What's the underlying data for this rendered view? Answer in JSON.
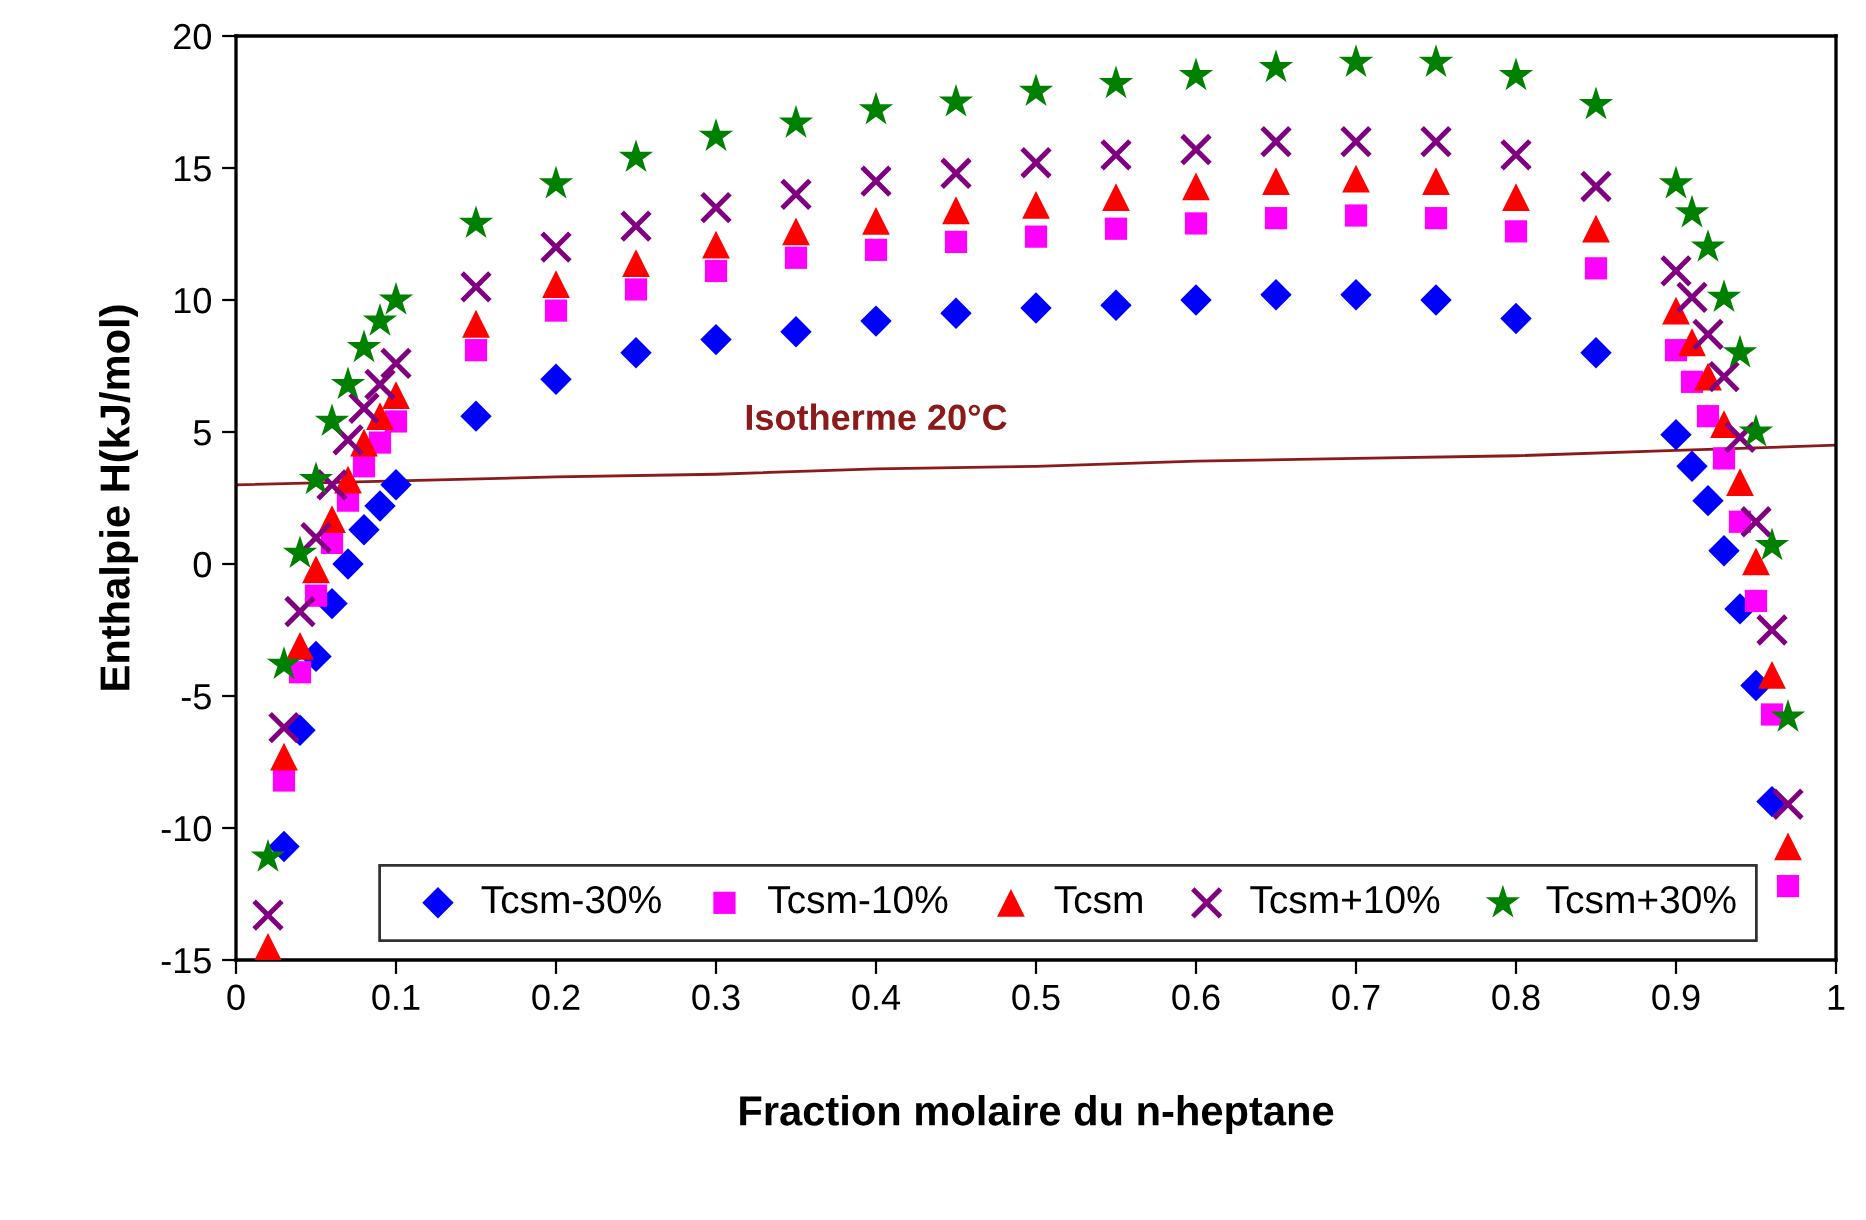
{
  "chart_data": {
    "type": "scatter",
    "xlabel": "Fraction molaire du n-heptane",
    "ylabel": "Enthalpie H(kJ/mol)",
    "xlim": [
      0,
      1
    ],
    "ylim": [
      -15,
      20
    ],
    "xticks": [
      0,
      0.1,
      0.2,
      0.3,
      0.4,
      0.5,
      0.6,
      0.7,
      0.8,
      0.9,
      1
    ],
    "yticks": [
      -15,
      -10,
      -5,
      0,
      5,
      10,
      15,
      20
    ],
    "grid": false,
    "legend": "bottom",
    "series": [
      {
        "name": "Tcsm-30%",
        "color": "#0000ff",
        "marker": "diamond",
        "x": [
          0.03,
          0.04,
          0.05,
          0.06,
          0.07,
          0.08,
          0.09,
          0.1,
          0.15,
          0.2,
          0.25,
          0.3,
          0.35,
          0.4,
          0.45,
          0.5,
          0.55,
          0.6,
          0.65,
          0.7,
          0.75,
          0.8,
          0.85,
          0.9,
          0.91,
          0.92,
          0.93,
          0.94,
          0.95,
          0.96
        ],
        "values": [
          -10.7,
          -6.3,
          -3.5,
          -1.5,
          0,
          1.3,
          2.2,
          3.0,
          5.6,
          7.0,
          8.0,
          8.5,
          8.8,
          9.2,
          9.5,
          9.7,
          9.8,
          10.0,
          10.2,
          10.2,
          10.0,
          9.3,
          8.0,
          4.9,
          3.7,
          2.4,
          0.5,
          -1.7,
          -4.6,
          -9.0
        ]
      },
      {
        "name": "Tcsm-10%",
        "color": "#ff00ff",
        "marker": "square",
        "x": [
          0.03,
          0.04,
          0.05,
          0.06,
          0.07,
          0.08,
          0.09,
          0.1,
          0.15,
          0.2,
          0.25,
          0.3,
          0.35,
          0.4,
          0.45,
          0.5,
          0.55,
          0.6,
          0.65,
          0.7,
          0.75,
          0.8,
          0.85,
          0.9,
          0.91,
          0.92,
          0.93,
          0.94,
          0.95,
          0.96,
          0.97
        ],
        "values": [
          -8.2,
          -4.1,
          -1.2,
          0.8,
          2.4,
          3.7,
          4.6,
          5.4,
          8.1,
          9.6,
          10.4,
          11.1,
          11.6,
          11.9,
          12.2,
          12.4,
          12.7,
          12.9,
          13.1,
          13.2,
          13.1,
          12.6,
          11.2,
          8.1,
          6.9,
          5.6,
          4.0,
          1.6,
          -1.4,
          -5.7,
          -12.2
        ]
      },
      {
        "name": "Tcsm",
        "color": "#ff0000",
        "marker": "triangle",
        "x": [
          0.02,
          0.03,
          0.04,
          0.05,
          0.06,
          0.07,
          0.08,
          0.09,
          0.1,
          0.15,
          0.2,
          0.25,
          0.3,
          0.35,
          0.4,
          0.45,
          0.5,
          0.55,
          0.6,
          0.65,
          0.7,
          0.75,
          0.8,
          0.85,
          0.9,
          0.91,
          0.92,
          0.93,
          0.94,
          0.95,
          0.96,
          0.97
        ],
        "values": [
          -14.5,
          -7.3,
          -3.1,
          -0.2,
          1.7,
          3.2,
          4.6,
          5.6,
          6.4,
          9.1,
          10.6,
          11.4,
          12.1,
          12.6,
          13.0,
          13.4,
          13.6,
          13.9,
          14.3,
          14.5,
          14.6,
          14.5,
          13.9,
          12.7,
          9.6,
          8.4,
          7.1,
          5.3,
          3.1,
          0.1,
          -4.2,
          -10.7
        ]
      },
      {
        "name": "Tcsm+10%",
        "color": "#800080",
        "marker": "cross",
        "x": [
          0.02,
          0.03,
          0.04,
          0.05,
          0.06,
          0.07,
          0.08,
          0.09,
          0.1,
          0.15,
          0.2,
          0.25,
          0.3,
          0.35,
          0.4,
          0.45,
          0.5,
          0.55,
          0.6,
          0.65,
          0.7,
          0.75,
          0.8,
          0.85,
          0.9,
          0.91,
          0.92,
          0.93,
          0.94,
          0.95,
          0.96,
          0.97
        ],
        "values": [
          -13.3,
          -6.2,
          -1.8,
          1.0,
          3.0,
          4.7,
          5.9,
          6.8,
          7.6,
          10.5,
          12.0,
          12.8,
          13.5,
          14.0,
          14.5,
          14.8,
          15.2,
          15.5,
          15.7,
          16.0,
          16.0,
          16.0,
          15.5,
          14.3,
          11.1,
          10.1,
          8.7,
          7.1,
          4.8,
          1.6,
          -2.5,
          -9.1
        ]
      },
      {
        "name": "Tcsm+30%",
        "color": "#008000",
        "marker": "star",
        "x": [
          0.02,
          0.03,
          0.04,
          0.05,
          0.06,
          0.07,
          0.08,
          0.09,
          0.1,
          0.15,
          0.2,
          0.25,
          0.3,
          0.35,
          0.4,
          0.45,
          0.5,
          0.55,
          0.6,
          0.65,
          0.7,
          0.75,
          0.8,
          0.85,
          0.9,
          0.91,
          0.92,
          0.93,
          0.94,
          0.95,
          0.96,
          0.97
        ],
        "values": [
          -11.1,
          -3.8,
          0.4,
          3.2,
          5.4,
          6.8,
          8.2,
          9.2,
          10.0,
          12.9,
          14.4,
          15.4,
          16.2,
          16.7,
          17.2,
          17.5,
          17.9,
          18.2,
          18.5,
          18.8,
          19.0,
          19.0,
          18.5,
          17.4,
          14.4,
          13.3,
          12.0,
          10.1,
          8.0,
          5.0,
          0.7,
          -5.8
        ]
      },
      {
        "name": "Isotherme 20°C",
        "type": "line",
        "color": "#8b1a1a",
        "marker": "none",
        "line_style": "solid",
        "x": [
          0,
          0.2,
          0.3,
          0.4,
          0.5,
          0.6,
          0.7,
          0.8,
          0.9,
          1
        ],
        "values": [
          3.0,
          3.3,
          3.4,
          3.6,
          3.7,
          3.9,
          4.0,
          4.1,
          4.3,
          4.5
        ]
      }
    ]
  }
}
